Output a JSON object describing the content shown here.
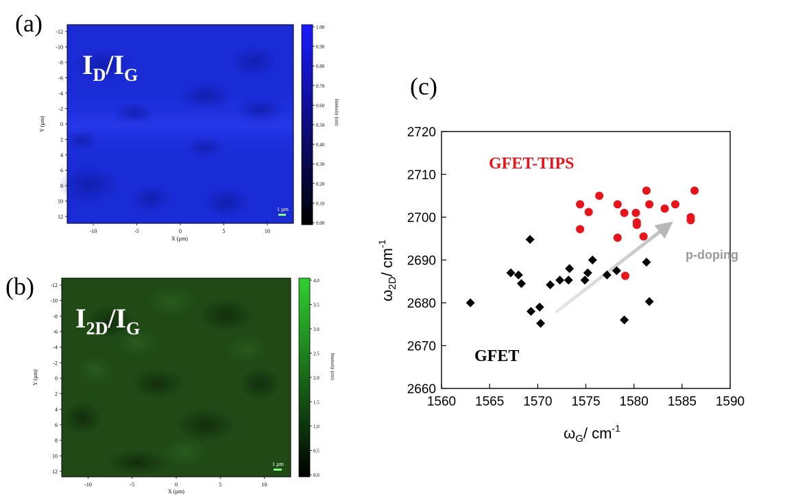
{
  "panels": {
    "a": {
      "letter": "(a)",
      "map_label_main": "I",
      "map_label_sub1": "D",
      "map_label_slash": "/I",
      "map_label_sub2": "G",
      "x_axis_label": "X (µm)",
      "y_axis_label": "Y (µm)",
      "x_ticks": [
        "-10",
        "-5",
        "0",
        "5",
        "10"
      ],
      "y_ticks": [
        "-12",
        "-10",
        "-8",
        "-6",
        "-4",
        "-2",
        "0",
        "2",
        "4",
        "6",
        "8",
        "10",
        "12"
      ],
      "colorbar_label": "Intensity (cnt)",
      "colorbar_ticks": [
        "1.00",
        "0.90",
        "0.80",
        "0.70",
        "0.60",
        "0.50",
        "0.40",
        "0.30",
        "0.20",
        "0.10",
        "0.00"
      ],
      "scalebar_label": "1 µm",
      "colormap_color": "#1a2bd6"
    },
    "b": {
      "letter": "(b)",
      "map_label_main": "I",
      "map_label_sub1": "2D",
      "map_label_slash": "/I",
      "map_label_sub2": "G",
      "x_axis_label": "X (µm)",
      "y_axis_label": "Y (µm)",
      "x_ticks": [
        "-10",
        "-5",
        "0",
        "5",
        "10"
      ],
      "y_ticks": [
        "-12",
        "-10",
        "-8",
        "-6",
        "-4",
        "-2",
        "0",
        "2",
        "4",
        "6",
        "8",
        "10",
        "12"
      ],
      "colorbar_label": "Intensity (cnt)",
      "colorbar_ticks": [
        "4.0",
        "3.5",
        "3.0",
        "2.5",
        "2.0",
        "1.5",
        "1.0",
        "0.5",
        "0.0"
      ],
      "scalebar_label": "1 µm",
      "colormap_color": "#1f4a16"
    },
    "c": {
      "letter": "(c)"
    }
  },
  "chart_data": {
    "type": "scatter",
    "title": "",
    "xlabel_main": "ω",
    "xlabel_sub": "G",
    "xlabel_rest": "/ cm",
    "xlabel_sup": "-1",
    "ylabel_main": "ω",
    "ylabel_sub": "2D",
    "ylabel_rest": "/ cm",
    "ylabel_sup": "-1",
    "xlim": [
      1560,
      1590
    ],
    "ylim": [
      2660,
      2720
    ],
    "x_ticks": [
      "1560",
      "1565",
      "1570",
      "1575",
      "1580",
      "1585",
      "1590"
    ],
    "y_ticks": [
      "2660",
      "2670",
      "2680",
      "2690",
      "2700",
      "2710",
      "2720"
    ],
    "grid": false,
    "series": [
      {
        "name": "GFET",
        "marker": "diamond",
        "color": "#000000",
        "points": [
          [
            1563.0,
            2680.0
          ],
          [
            1567.2,
            2687.0
          ],
          [
            1568.0,
            2686.5
          ],
          [
            1568.3,
            2684.5
          ],
          [
            1569.2,
            2694.8
          ],
          [
            1569.3,
            2678.0
          ],
          [
            1570.2,
            2679.0
          ],
          [
            1570.3,
            2675.2
          ],
          [
            1571.3,
            2684.2
          ],
          [
            1572.3,
            2685.3
          ],
          [
            1573.2,
            2685.3
          ],
          [
            1573.3,
            2688.0
          ],
          [
            1574.9,
            2685.3
          ],
          [
            1575.2,
            2687.0
          ],
          [
            1575.7,
            2690.0
          ],
          [
            1577.2,
            2686.5
          ],
          [
            1578.2,
            2687.5
          ],
          [
            1579.0,
            2676.0
          ],
          [
            1581.3,
            2689.5
          ],
          [
            1581.6,
            2680.3
          ]
        ]
      },
      {
        "name": "GFET-TIPS",
        "marker": "circle",
        "color": "#e8141b",
        "points": [
          [
            1574.4,
            2703.0
          ],
          [
            1574.4,
            2697.2
          ],
          [
            1575.3,
            2701.2
          ],
          [
            1576.4,
            2705.0
          ],
          [
            1578.3,
            2703.0
          ],
          [
            1578.3,
            2695.2
          ],
          [
            1579.0,
            2701.0
          ],
          [
            1579.1,
            2686.3
          ],
          [
            1580.2,
            2701.0
          ],
          [
            1580.3,
            2698.8
          ],
          [
            1580.3,
            2698.2
          ],
          [
            1581.0,
            2695.5
          ],
          [
            1581.3,
            2706.2
          ],
          [
            1581.6,
            2703.0
          ],
          [
            1583.2,
            2702.0
          ],
          [
            1584.3,
            2703.0
          ],
          [
            1585.9,
            2700.0
          ],
          [
            1585.9,
            2699.3
          ],
          [
            1586.3,
            2706.2
          ]
        ]
      }
    ],
    "annotations": {
      "gfet_tips_label": "GFET-TIPS",
      "gfet_label": "GFET",
      "arrow_label": "p-doping",
      "arrow_from": [
        1572.0,
        2678.0
      ],
      "arrow_to": [
        1583.5,
        2698.0
      ],
      "arrow_color": "#c8c8c8",
      "arrow_label_color": "#9a9a9a",
      "gfet_tips_label_color": "#e8141b"
    }
  }
}
